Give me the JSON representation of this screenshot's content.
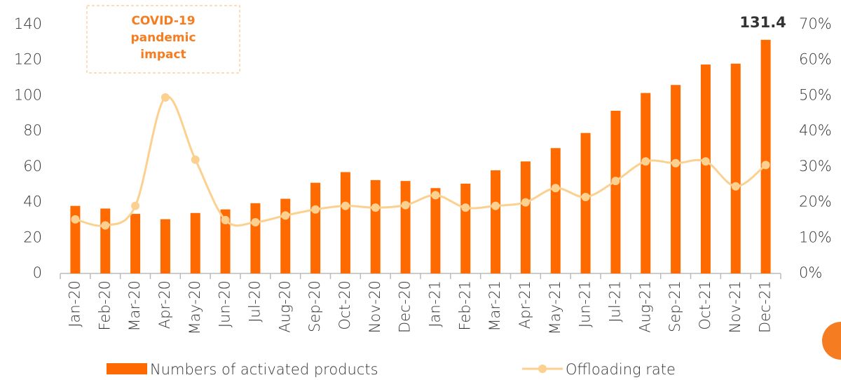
{
  "chart_data": {
    "type": "bar",
    "categories": [
      "Jan-20",
      "Feb-20",
      "Mar-20",
      "Apr-20",
      "May-20",
      "Jun-20",
      "Jul-20",
      "Aug-20",
      "Sep-20",
      "Oct-20",
      "Nov-20",
      "Dec-20",
      "Jan-21",
      "Feb-21",
      "Mar-21",
      "Apr-21",
      "May-21",
      "Jun-21",
      "Jul-21",
      "Aug-21",
      "Sep-21",
      "Oct-21",
      "Nov-21",
      "Dec-21"
    ],
    "series": [
      {
        "name": "Numbers of activated products",
        "type": "bar",
        "color": "#ff6a00",
        "values": [
          38,
          36.5,
          33.5,
          30.5,
          34,
          36,
          39.5,
          42,
          51,
          57,
          52.5,
          52,
          48,
          50.5,
          58,
          63,
          70.5,
          79,
          91.5,
          101.5,
          106,
          117.5,
          118,
          131.4
        ],
        "value_labels": [
          null,
          null,
          null,
          null,
          null,
          null,
          null,
          null,
          null,
          null,
          null,
          null,
          null,
          null,
          null,
          null,
          null,
          null,
          null,
          null,
          null,
          null,
          null,
          "131.4"
        ]
      },
      {
        "name": "Offloading rate",
        "type": "line",
        "axis": "y2",
        "color": "#fcd08f",
        "values": [
          15.2,
          13.5,
          19,
          49.5,
          32,
          15,
          14.4,
          16.3,
          18,
          19,
          18.5,
          19.2,
          22,
          18.5,
          19,
          20,
          24,
          21.5,
          26,
          31.5,
          31,
          31.5,
          24.5,
          30.5
        ]
      }
    ],
    "ylim": [
      0,
      140
    ],
    "yticks": [
      0,
      20,
      40,
      60,
      80,
      100,
      120,
      140
    ],
    "y2lim": [
      0,
      70
    ],
    "y2ticks": [
      {
        "value": 0,
        "label": "0%"
      },
      {
        "value": 10,
        "label": "10%"
      },
      {
        "value": 20,
        "label": "20%"
      },
      {
        "value": 30,
        "label": "30%"
      },
      {
        "value": 40,
        "label": "40%"
      },
      {
        "value": 50,
        "label": "50%"
      },
      {
        "value": 60,
        "label": "60%"
      },
      {
        "value": 70,
        "label": "70%"
      }
    ],
    "annotation": {
      "lines": [
        "COVID-19",
        "pandemic",
        "impact"
      ],
      "color": "#f57c20"
    },
    "legend": "bottom",
    "grid": false
  }
}
